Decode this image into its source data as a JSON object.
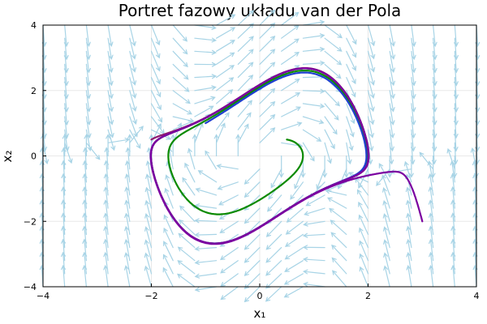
{
  "chart_data": {
    "type": "line",
    "title": "Portret fazowy układu van der Pola",
    "xlabel": "x₁",
    "ylabel": "x₂",
    "xlim": [
      -4,
      4
    ],
    "ylim": [
      -4,
      4
    ],
    "xticks": [
      -4,
      -2,
      0,
      2,
      4
    ],
    "yticks": [
      -4,
      -2,
      0,
      2,
      4
    ],
    "xtick_labels": [
      "−4",
      "−2",
      "0",
      "2",
      "4"
    ],
    "ytick_labels": [
      "−4",
      "−2",
      "0",
      "2",
      "4"
    ],
    "grid": true,
    "legend": false,
    "system": "van der Pol, mu = 1",
    "vector_field": {
      "color": "#a8d4e6",
      "x_range": [
        -4,
        4
      ],
      "y_range": [
        -4,
        4
      ],
      "grid_n": 20
    },
    "series": [
      {
        "color": "#0b8a00",
        "start": [
          0.5,
          0.5
        ]
      },
      {
        "color": "#1f3fd1",
        "start": [
          -1.0,
          1.0
        ]
      },
      {
        "color": "#8e1a6e",
        "start": [
          -2.0,
          0.5
        ]
      },
      {
        "color": "#7b00a0",
        "start": [
          3.0,
          -2.0
        ]
      }
    ]
  }
}
